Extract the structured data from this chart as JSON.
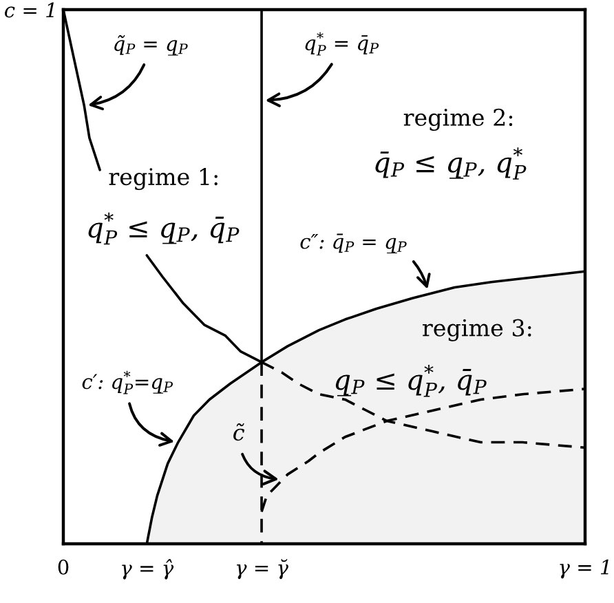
{
  "chart_data": {
    "type": "line",
    "line_style": "solid",
    "xlim": [
      0,
      1
    ],
    "ylim": [
      0,
      1
    ],
    "xticks": [
      {
        "value": 0,
        "label": "0"
      },
      {
        "value": 0.16,
        "label": "γ = γ̂"
      },
      {
        "value": 0.38,
        "label": "γ = γ̆"
      },
      {
        "value": 1,
        "label": "γ = 1"
      }
    ],
    "yticks": [
      {
        "value": 1,
        "label": "c = 1"
      }
    ],
    "series": [
      {
        "color": "#000000",
        "x": [
          0.0,
          0.02,
          0.04,
          0.05,
          0.07,
          0.1,
          0.16,
          0.19,
          0.23,
          0.27,
          0.31,
          0.34,
          0.38
        ],
        "values": [
          1.0,
          0.91,
          0.82,
          0.76,
          0.7,
          null,
          0.54,
          0.5,
          0.45,
          0.41,
          0.39,
          0.36,
          0.34
        ]
      },
      {
        "color": "#000000",
        "x": [
          0.38,
          0.38
        ],
        "values": [
          1.0,
          0.34
        ]
      },
      {
        "color": "#000000",
        "line_style": "dashed",
        "x": [
          0.38,
          0.38
        ],
        "values": [
          0.34,
          0.0
        ]
      },
      {
        "type": "area",
        "color": "#000000",
        "x": [
          0.16,
          0.17,
          0.18,
          0.2,
          0.22,
          0.25,
          0.28,
          0.32,
          0.38,
          0.43,
          0.49,
          0.54,
          0.6,
          0.67,
          0.75,
          0.82,
          0.91,
          1.0
        ],
        "values": [
          0.0,
          0.05,
          0.09,
          0.15,
          0.19,
          0.24,
          0.27,
          0.3,
          0.34,
          0.37,
          0.4,
          0.42,
          0.44,
          0.46,
          0.48,
          0.49,
          0.5,
          0.51
        ]
      },
      {
        "color": "#000000",
        "line_style": "dashed",
        "x": [
          0.38,
          0.42,
          0.45,
          0.49,
          0.54,
          0.58,
          0.62,
          0.71,
          0.8,
          0.88,
          1.0
        ],
        "values": [
          0.34,
          0.32,
          0.3,
          0.28,
          0.27,
          0.25,
          0.23,
          0.21,
          0.19,
          0.19,
          0.18
        ]
      },
      {
        "color": "#000000",
        "line_style": "dashed",
        "x": [
          0.38,
          0.39,
          0.41,
          0.43,
          0.47,
          0.49,
          0.54,
          0.62,
          0.71,
          0.8,
          0.88,
          1.0
        ],
        "values": [
          0.06,
          0.09,
          0.11,
          0.13,
          0.155,
          0.17,
          0.2,
          0.23,
          0.25,
          0.27,
          0.28,
          0.29
        ]
      }
    ],
    "annotations": [
      {
        "text": "q̃$_{P}$ = q̲$_{P}$",
        "x": 0.04,
        "y": 0.82
      },
      {
        "text": "q$^{*}$$_{P}$ = q̄$_{P}$",
        "x": 0.38,
        "y": 0.83
      },
      "regime 2:",
      "q̄$_{P}$ ≤ q̲$_{P}$, q$^{*}$$_{P}$",
      "regime 1:",
      "q$^{*}$$_{P}$ ≤ q̲$_{P}$, q̄$_{P}$",
      {
        "text": "c″: q̄$_{P}$ = q̲$_{P}$",
        "x": 0.7,
        "y": 0.47
      },
      "regime 3:",
      "q̲$_{P}$ ≤ q$^{*}$$_{P}$, q̄$_{P}$",
      {
        "text": "c′: q$^{*}$$_{P}$=q̲$_{P}$",
        "x": 0.22,
        "y": 0.19
      },
      {
        "text": "c̃",
        "x": 0.42,
        "y": 0.12
      }
    ]
  }
}
